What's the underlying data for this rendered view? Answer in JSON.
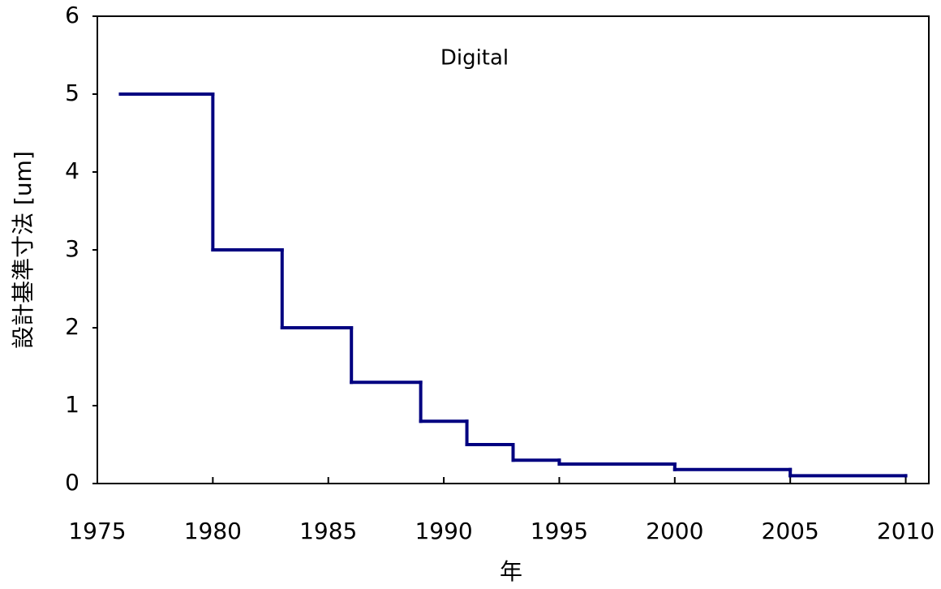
{
  "chart_data": {
    "type": "step",
    "title": "Digital",
    "x_label": "年",
    "y_label": "設計基準寸法 [um]",
    "series": [
      {
        "name": "Digital",
        "color": "#000080",
        "x": [
          1976,
          1980,
          1983,
          1986,
          1989,
          1991,
          1993,
          1995,
          2000,
          2005,
          2010
        ],
        "values": [
          5,
          3,
          2,
          1.3,
          0.8,
          0.5,
          0.3,
          0.25,
          0.18,
          0.1,
          0.1
        ]
      }
    ],
    "xlim": [
      1975,
      2011
    ],
    "xticks": [
      1975,
      1980,
      1985,
      1990,
      1995,
      2000,
      2005,
      2010
    ],
    "ylim": [
      0,
      6
    ],
    "yticks": [
      0,
      1,
      2,
      3,
      4,
      5,
      6
    ],
    "grid": false
  }
}
